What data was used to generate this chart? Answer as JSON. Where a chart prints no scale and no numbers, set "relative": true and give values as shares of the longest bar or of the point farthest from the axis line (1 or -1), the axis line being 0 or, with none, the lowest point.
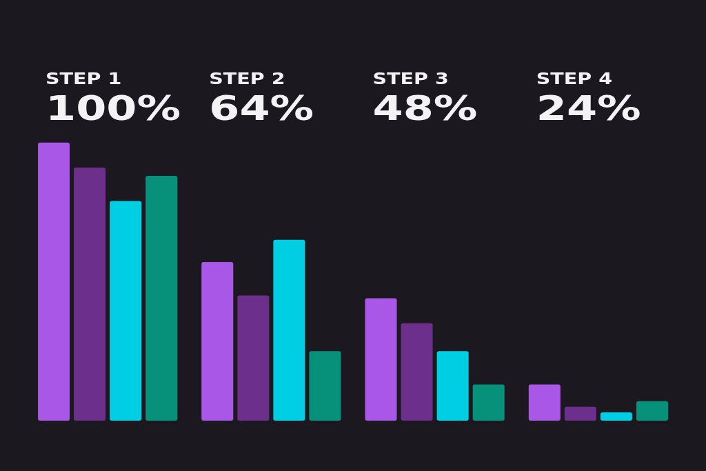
{
  "chart_data": {
    "type": "bar",
    "relative": true,
    "categories": [
      "STEP 1",
      "STEP 2",
      "STEP 3",
      "STEP 4"
    ],
    "annotations": [
      "100%",
      "64%",
      "48%",
      "24%"
    ],
    "series": [
      {
        "color": "#a957e6",
        "values": [
          1,
          0.57,
          0.44,
          0.13
        ]
      },
      {
        "color": "#6c308c",
        "values": [
          0.91,
          0.45,
          0.35,
          0.05
        ]
      },
      {
        "color": "#00cfe3",
        "values": [
          0.79,
          0.65,
          0.25,
          0.03
        ]
      },
      {
        "color": "#07917a",
        "values": [
          0.88,
          0.25,
          0.13,
          0.07
        ]
      }
    ]
  }
}
